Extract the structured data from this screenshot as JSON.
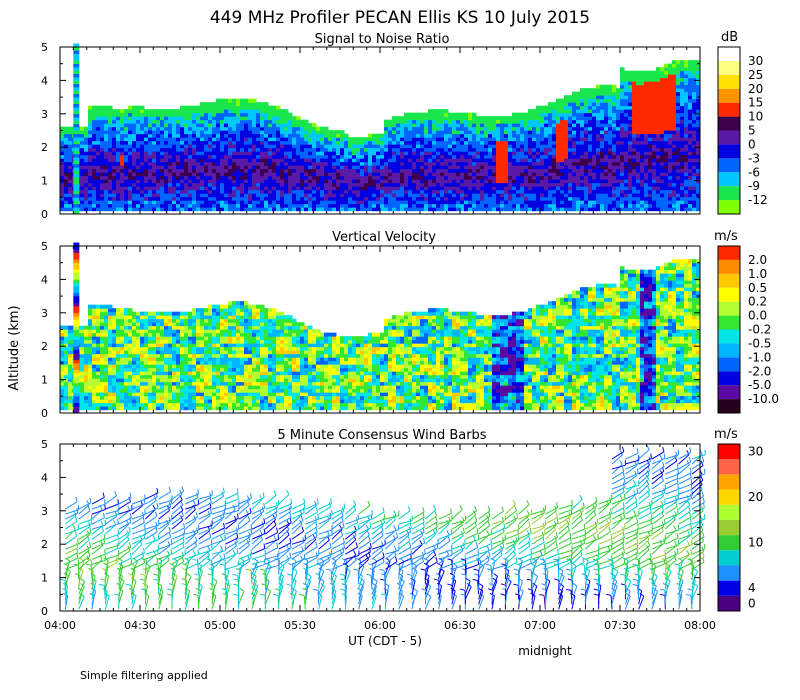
{
  "figure": {
    "title": "449 MHz Profiler PECAN Ellis KS 10 July 2015",
    "ylabel": "Altitude (km)",
    "xlabel": "UT  (CDT - 5)",
    "x_annotation": "midnight",
    "footnote": "Simple filtering applied"
  },
  "chart_data": [
    {
      "type": "heatmap",
      "title": "Signal to Noise Ratio",
      "colorbar_unit": "dB",
      "x_ticks": [
        "04:00",
        "04:30",
        "05:00",
        "05:30",
        "06:00",
        "06:30",
        "07:00",
        "07:30",
        "08:00"
      ],
      "xlim": [
        "04:00",
        "08:00"
      ],
      "ylim": [
        0,
        5
      ],
      "y_ticks": [
        0,
        1,
        2,
        3,
        4,
        5
      ],
      "levels": [
        {
          "label": "-12",
          "color": "#7fff00"
        },
        {
          "label": "-9",
          "color": "#19e64c"
        },
        {
          "label": "-6",
          "color": "#00c8ff"
        },
        {
          "label": "-3",
          "color": "#0064ff"
        },
        {
          "label": "0",
          "color": "#0000e0"
        },
        {
          "label": "5",
          "color": "#5a1aa6"
        },
        {
          "label": "10",
          "color": "#3d004d"
        },
        {
          "label": "15",
          "color": "#ff2a00"
        },
        {
          "label": "20",
          "color": "#ff9600"
        },
        {
          "label": "25",
          "color": "#ffe000"
        },
        {
          "label": "30",
          "color": "#ffff80"
        },
        {
          "label": "",
          "color": "#ffffff"
        }
      ]
    },
    {
      "type": "heatmap",
      "title": "Vertical Velocity",
      "colorbar_unit": "m/s",
      "x_ticks": [
        "04:00",
        "04:30",
        "05:00",
        "05:30",
        "06:00",
        "06:30",
        "07:00",
        "07:30",
        "08:00"
      ],
      "xlim": [
        "04:00",
        "08:00"
      ],
      "ylim": [
        0,
        5
      ],
      "y_ticks": [
        0,
        1,
        2,
        3,
        4,
        5
      ],
      "levels": [
        {
          "label": "-10.0",
          "color": "#280020"
        },
        {
          "label": "-5.0",
          "color": "#5a0aa0"
        },
        {
          "label": "-2.0",
          "color": "#0000e0"
        },
        {
          "label": "-1.0",
          "color": "#0064ff"
        },
        {
          "label": "-0.5",
          "color": "#00b4ff"
        },
        {
          "label": "-0.2",
          "color": "#00e6e6"
        },
        {
          "label": "0.0",
          "color": "#32e632"
        },
        {
          "label": "0.2",
          "color": "#b4ff32"
        },
        {
          "label": "0.5",
          "color": "#ffff00"
        },
        {
          "label": "1.0",
          "color": "#ffc800"
        },
        {
          "label": "2.0",
          "color": "#ff8c00"
        },
        {
          "label": "",
          "color": "#ff2a00"
        }
      ]
    },
    {
      "type": "wind_barbs",
      "title": "5 Minute Consensus Wind Barbs",
      "colorbar_unit": "m/s",
      "x_ticks": [
        "04:00",
        "04:30",
        "05:00",
        "05:30",
        "06:00",
        "06:30",
        "07:00",
        "07:30",
        "08:00"
      ],
      "xlim": [
        "04:00",
        "08:00"
      ],
      "ylim": [
        0,
        5
      ],
      "y_ticks": [
        0,
        1,
        2,
        3,
        4,
        5
      ],
      "levels": [
        {
          "label": "0",
          "color": "#4b0082"
        },
        {
          "label": "4",
          "color": "#0000e6"
        },
        {
          "label": "",
          "color": "#1e90ff"
        },
        {
          "label": "",
          "color": "#00ced1"
        },
        {
          "label": "10",
          "color": "#32cd32"
        },
        {
          "label": "",
          "color": "#9acd32"
        },
        {
          "label": "",
          "color": "#adff2f"
        },
        {
          "label": "20",
          "color": "#ffd700"
        },
        {
          "label": "",
          "color": "#ffa500"
        },
        {
          "label": "",
          "color": "#ff6347"
        },
        {
          "label": "30",
          "color": "#ff0000"
        }
      ]
    }
  ]
}
